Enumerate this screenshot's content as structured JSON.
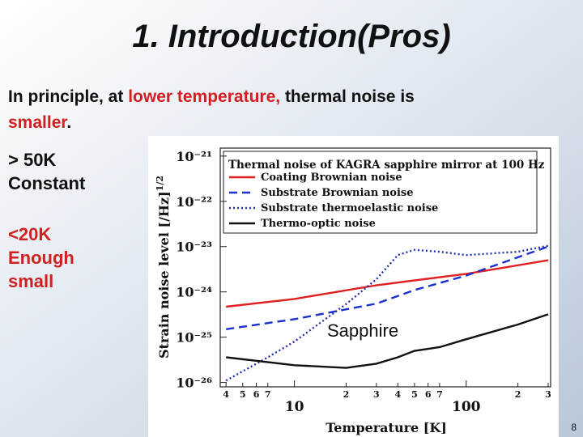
{
  "slide": {
    "title": "1.  Introduction(Pros)",
    "intro": [
      "In principle, at ",
      "lower temperature,",
      " thermal noise is ",
      "smaller",
      "."
    ],
    "notes": [
      [
        "> 50K",
        "Constant"
      ],
      [
        "<20K",
        "Enough",
        "small"
      ]
    ],
    "page_number": "8"
  },
  "chart_data": {
    "type": "line",
    "title": "Thermal noise of KAGRA sapphire mirror at 100 Hz",
    "xlabel": "Temperature [K]",
    "ylabel": "Strain noise level [/Hz]",
    "ylabel_exponent": "1/2",
    "annotation": "Sapphire",
    "log_x": true,
    "log_y": true,
    "xlim": [
      3.7,
      310
    ],
    "ylim": [
      8e-27,
      1.5e-21
    ],
    "xticks": [
      4,
      5,
      6,
      7,
      10,
      {
        "value": 20,
        "label": "2"
      },
      {
        "value": 30,
        "label": "3"
      },
      {
        "value": 40,
        "label": "4"
      },
      {
        "value": 50,
        "label": "5"
      },
      {
        "value": 60,
        "label": "6"
      },
      {
        "value": 70,
        "label": "7"
      },
      100,
      {
        "value": 200,
        "label": "2"
      },
      {
        "value": 300,
        "label": "3"
      }
    ],
    "yticks": [
      {
        "value": 1e-26,
        "label": "10⁻²⁶"
      },
      {
        "value": 1e-25,
        "label": "10⁻²⁵"
      },
      {
        "value": 1e-24,
        "label": "10⁻²⁴"
      },
      {
        "value": 1e-23,
        "label": "10⁻²³"
      },
      {
        "value": 1e-22,
        "label": "10⁻²²"
      },
      {
        "value": 1e-21,
        "label": "10⁻²¹"
      }
    ],
    "series": [
      {
        "name": "Coating Brownian noise",
        "color": "#e02020",
        "dash": "solid",
        "x": [
          4,
          10,
          30,
          100,
          300
        ],
        "values": [
          4.7e-25,
          7e-25,
          1.4e-24,
          2.5e-24,
          5e-24
        ]
      },
      {
        "name": "Substrate Brownian noise",
        "color": "#1a2fcc",
        "dash": "dashed",
        "x": [
          4,
          10,
          30,
          50,
          100,
          300
        ],
        "values": [
          1.5e-25,
          2.5e-25,
          5.5e-25,
          1.1e-24,
          2.3e-24,
          1e-23
        ]
      },
      {
        "name": "Substrate thermoelastic noise",
        "color": "#2233aa",
        "dash": "dotted",
        "x": [
          4,
          7,
          10,
          20,
          30,
          40,
          50,
          70,
          100,
          200,
          300
        ],
        "values": [
          1.1e-26,
          3.6e-26,
          8e-26,
          5.4e-25,
          1.9e-24,
          6.5e-24,
          8.5e-24,
          7.7e-24,
          6.5e-24,
          7.7e-24,
          1.05e-23
        ]
      },
      {
        "name": "Thermo-optic noise",
        "color": "#111111",
        "dash": "solid",
        "x": [
          4,
          10,
          20,
          30,
          40,
          50,
          70,
          100,
          200,
          300
        ],
        "values": [
          3.6e-26,
          2.4e-26,
          2.1e-26,
          2.6e-26,
          3.6e-26,
          5e-26,
          6e-26,
          9e-26,
          1.9e-25,
          3.2e-25
        ]
      }
    ]
  }
}
